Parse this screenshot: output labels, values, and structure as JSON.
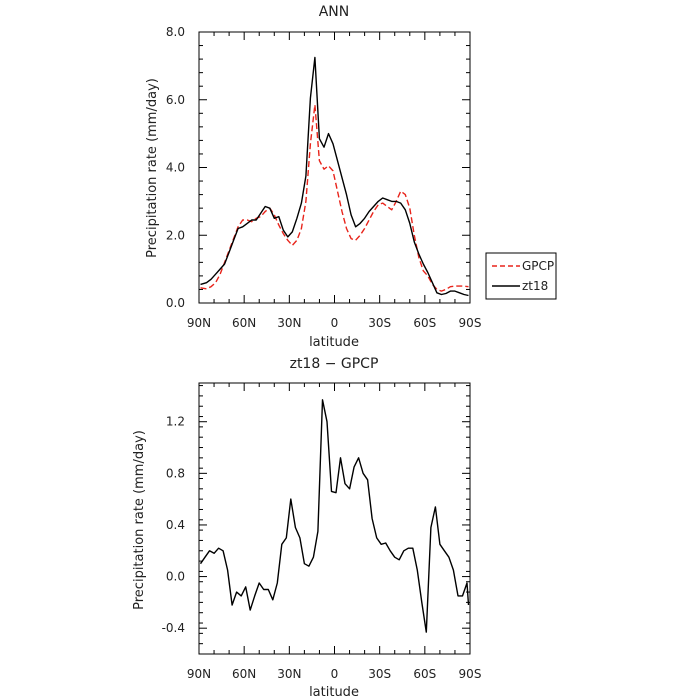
{
  "chart_data": [
    {
      "type": "line",
      "title": "ANN",
      "xlabel": "latitude",
      "ylabel": "Precipitation rate (mm/day)",
      "xlim": [
        90,
        -90
      ],
      "ylim": [
        0,
        8
      ],
      "x_ticks": [
        90,
        60,
        30,
        0,
        -30,
        -60,
        -90
      ],
      "x_tick_labels": [
        "90N",
        "60N",
        "30N",
        "0",
        "30S",
        "60S",
        "90S"
      ],
      "y_ticks": [
        0,
        2,
        4,
        6,
        8
      ],
      "y_tick_labels": [
        "0.0",
        "2.0",
        "4.0",
        "6.0",
        "8.0"
      ],
      "legend": {
        "placement": "right",
        "entries": [
          "GPCP",
          "zt18"
        ]
      },
      "series": [
        {
          "name": "GPCP",
          "color": "#e8241b",
          "dash": "dashed",
          "x": [
            89,
            85,
            82,
            79,
            76,
            73,
            70,
            67,
            64,
            61,
            58,
            55,
            52,
            49,
            46,
            43,
            40,
            37,
            34,
            31,
            28,
            25,
            22,
            19,
            16,
            13,
            10,
            7,
            4,
            1,
            -2,
            -5,
            -8,
            -11,
            -14,
            -17,
            -20,
            -23,
            -26,
            -29,
            -32,
            -35,
            -38,
            -41,
            -44,
            -47,
            -50,
            -53,
            -56,
            -59,
            -62,
            -65,
            -68,
            -71,
            -74,
            -77,
            -80,
            -83,
            -86,
            -89
          ],
          "values": [
            0.45,
            0.42,
            0.48,
            0.6,
            0.85,
            1.2,
            1.55,
            1.9,
            2.25,
            2.45,
            2.45,
            2.4,
            2.5,
            2.55,
            2.7,
            2.8,
            2.6,
            2.3,
            2.05,
            1.85,
            1.7,
            1.85,
            2.2,
            3.0,
            4.7,
            5.85,
            4.2,
            3.95,
            4.05,
            3.9,
            3.3,
            2.7,
            2.2,
            1.9,
            1.85,
            2.0,
            2.2,
            2.45,
            2.7,
            2.9,
            2.95,
            2.85,
            2.75,
            3.0,
            3.3,
            3.2,
            2.8,
            2.0,
            1.35,
            0.95,
            0.8,
            0.55,
            0.4,
            0.35,
            0.4,
            0.48,
            0.5,
            0.5,
            0.5,
            0.48
          ]
        },
        {
          "name": "zt18",
          "color": "#000000",
          "dash": "solid",
          "x": [
            89,
            85,
            82,
            79,
            76,
            73,
            70,
            67,
            64,
            61,
            58,
            55,
            52,
            49,
            46,
            43,
            40,
            37,
            34,
            31,
            28,
            25,
            22,
            19,
            16,
            13,
            10,
            7,
            4,
            1,
            -2,
            -5,
            -8,
            -11,
            -14,
            -17,
            -20,
            -23,
            -26,
            -29,
            -32,
            -35,
            -38,
            -41,
            -44,
            -47,
            -50,
            -53,
            -56,
            -59,
            -62,
            -65,
            -68,
            -71,
            -74,
            -77,
            -80,
            -83,
            -86,
            -89
          ],
          "values": [
            0.55,
            0.6,
            0.7,
            0.85,
            1.0,
            1.15,
            1.5,
            1.85,
            2.2,
            2.25,
            2.35,
            2.45,
            2.45,
            2.65,
            2.85,
            2.8,
            2.5,
            2.55,
            2.15,
            1.95,
            2.1,
            2.5,
            2.95,
            3.75,
            6.05,
            7.25,
            4.85,
            4.6,
            5.0,
            4.7,
            4.2,
            3.7,
            3.2,
            2.6,
            2.25,
            2.35,
            2.5,
            2.7,
            2.85,
            3.0,
            3.1,
            3.05,
            3.0,
            3.0,
            2.95,
            2.75,
            2.35,
            1.8,
            1.45,
            1.15,
            0.9,
            0.6,
            0.3,
            0.25,
            0.28,
            0.35,
            0.35,
            0.3,
            0.25,
            0.22
          ]
        }
      ]
    },
    {
      "type": "line",
      "title": "zt18 − GPCP",
      "xlabel": "latitude",
      "ylabel": "Precipitation rate (mm/day)",
      "xlim": [
        90,
        -90
      ],
      "ylim": [
        -0.6,
        1.5
      ],
      "x_ticks": [
        90,
        60,
        30,
        0,
        -30,
        -60,
        -90
      ],
      "x_tick_labels": [
        "90N",
        "60N",
        "30N",
        "0",
        "30S",
        "60S",
        "90S"
      ],
      "y_ticks": [
        -0.4,
        0,
        0.4,
        0.8,
        1.2
      ],
      "y_tick_labels": [
        "-0.4",
        "0.0",
        "0.4",
        "0.8",
        "1.2"
      ],
      "series": [
        {
          "color": "#000000",
          "dash": "solid",
          "x": [
            89,
            86,
            83,
            80,
            77,
            74,
            71,
            68,
            65,
            62,
            59,
            56,
            53,
            50,
            47,
            44,
            41,
            38,
            35,
            32,
            29,
            26,
            23,
            20,
            17,
            14,
            11,
            8,
            5,
            2,
            -1,
            -4,
            -7,
            -10,
            -13,
            -16,
            -19,
            -22,
            -25,
            -28,
            -31,
            -34,
            -37,
            -40,
            -43,
            -46,
            -49,
            -52,
            -55,
            -58,
            -61,
            -64,
            -67,
            -70,
            -73,
            -76,
            -79,
            -82,
            -85,
            -88,
            -89
          ],
          "values": [
            0.1,
            0.15,
            0.2,
            0.18,
            0.22,
            0.2,
            0.05,
            -0.22,
            -0.12,
            -0.15,
            -0.08,
            -0.26,
            -0.15,
            -0.05,
            -0.1,
            -0.1,
            -0.18,
            -0.05,
            0.25,
            0.3,
            0.6,
            0.38,
            0.3,
            0.1,
            0.08,
            0.15,
            0.35,
            1.37,
            1.2,
            0.66,
            0.65,
            0.92,
            0.72,
            0.68,
            0.85,
            0.92,
            0.8,
            0.75,
            0.45,
            0.3,
            0.25,
            0.26,
            0.2,
            0.15,
            0.13,
            0.2,
            0.22,
            0.22,
            0.05,
            -0.2,
            -0.43,
            0.38,
            0.54,
            0.25,
            0.2,
            0.15,
            0.05,
            -0.15,
            -0.15,
            -0.05,
            -0.22
          ]
        }
      ]
    }
  ]
}
